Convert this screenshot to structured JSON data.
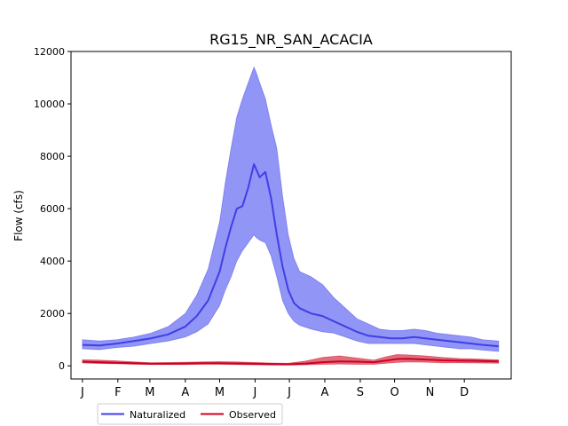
{
  "chart_data": {
    "type": "area",
    "title": "RG15_NR_SAN_ACACIA",
    "xlabel": "",
    "ylabel": "Flow (cfs)",
    "xlim": [
      -10,
      375
    ],
    "ylim": [
      -500,
      12000
    ],
    "x_ticks": [
      {
        "label": "J",
        "day": 0
      },
      {
        "label": "F",
        "day": 31
      },
      {
        "label": "M",
        "day": 59
      },
      {
        "label": "A",
        "day": 90
      },
      {
        "label": "M",
        "day": 120
      },
      {
        "label": "J",
        "day": 151
      },
      {
        "label": "J",
        "day": 181
      },
      {
        "label": "A",
        "day": 212
      },
      {
        "label": "S",
        "day": 243
      },
      {
        "label": "O",
        "day": 273
      },
      {
        "label": "N",
        "day": 304
      },
      {
        "label": "D",
        "day": 334
      }
    ],
    "y_ticks": [
      0,
      2000,
      4000,
      6000,
      8000,
      10000,
      12000
    ],
    "grid": false,
    "legend_placement": "below-left",
    "series": [
      {
        "name": "Naturalized",
        "color": "#3f3fe6",
        "band_color": "#8b8ff5",
        "x": [
          0,
          15,
          30,
          45,
          60,
          75,
          90,
          100,
          110,
          120,
          125,
          130,
          135,
          140,
          145,
          150,
          152,
          155,
          160,
          165,
          170,
          175,
          180,
          185,
          190,
          200,
          210,
          220,
          230,
          240,
          250,
          260,
          270,
          280,
          290,
          300,
          310,
          320,
          330,
          340,
          350,
          364
        ],
        "median": [
          800,
          780,
          850,
          950,
          1050,
          1200,
          1500,
          1900,
          2500,
          3600,
          4500,
          5300,
          6000,
          6100,
          6800,
          7700,
          7500,
          7200,
          7400,
          6400,
          5000,
          3800,
          2900,
          2400,
          2200,
          2000,
          1900,
          1700,
          1500,
          1300,
          1150,
          1100,
          1050,
          1050,
          1100,
          1050,
          1000,
          950,
          900,
          850,
          800,
          750
        ],
        "low": [
          650,
          620,
          700,
          750,
          850,
          950,
          1100,
          1300,
          1600,
          2300,
          2900,
          3400,
          4000,
          4400,
          4700,
          5000,
          4900,
          4800,
          4700,
          4200,
          3400,
          2500,
          2000,
          1700,
          1550,
          1400,
          1300,
          1250,
          1100,
          950,
          850,
          850,
          850,
          850,
          850,
          800,
          750,
          700,
          650,
          650,
          600,
          550
        ],
        "high": [
          1000,
          950,
          1000,
          1100,
          1250,
          1500,
          2000,
          2700,
          3700,
          5500,
          7000,
          8300,
          9500,
          10200,
          10800,
          11400,
          11200,
          10800,
          10200,
          9200,
          8300,
          6500,
          5000,
          4100,
          3600,
          3400,
          3100,
          2600,
          2200,
          1800,
          1600,
          1400,
          1350,
          1350,
          1400,
          1350,
          1250,
          1200,
          1150,
          1100,
          1000,
          950
        ]
      },
      {
        "name": "Observed",
        "color": "#cc0022",
        "band_color": "#dd5566",
        "x": [
          0,
          15,
          30,
          45,
          60,
          75,
          90,
          105,
          120,
          135,
          150,
          165,
          180,
          195,
          210,
          225,
          240,
          255,
          265,
          275,
          285,
          300,
          315,
          330,
          345,
          364
        ],
        "median": [
          160,
          140,
          120,
          100,
          80,
          80,
          90,
          100,
          100,
          90,
          80,
          70,
          60,
          90,
          140,
          170,
          160,
          140,
          200,
          260,
          270,
          240,
          210,
          200,
          190,
          170
        ],
        "low": [
          110,
          90,
          80,
          60,
          50,
          50,
          50,
          60,
          60,
          50,
          40,
          30,
          30,
          40,
          60,
          70,
          60,
          60,
          100,
          130,
          150,
          140,
          120,
          120,
          110,
          100
        ],
        "high": [
          230,
          220,
          190,
          150,
          120,
          130,
          140,
          150,
          160,
          150,
          130,
          110,
          100,
          180,
          320,
          380,
          300,
          220,
          340,
          430,
          420,
          380,
          320,
          280,
          260,
          230
        ]
      }
    ]
  }
}
